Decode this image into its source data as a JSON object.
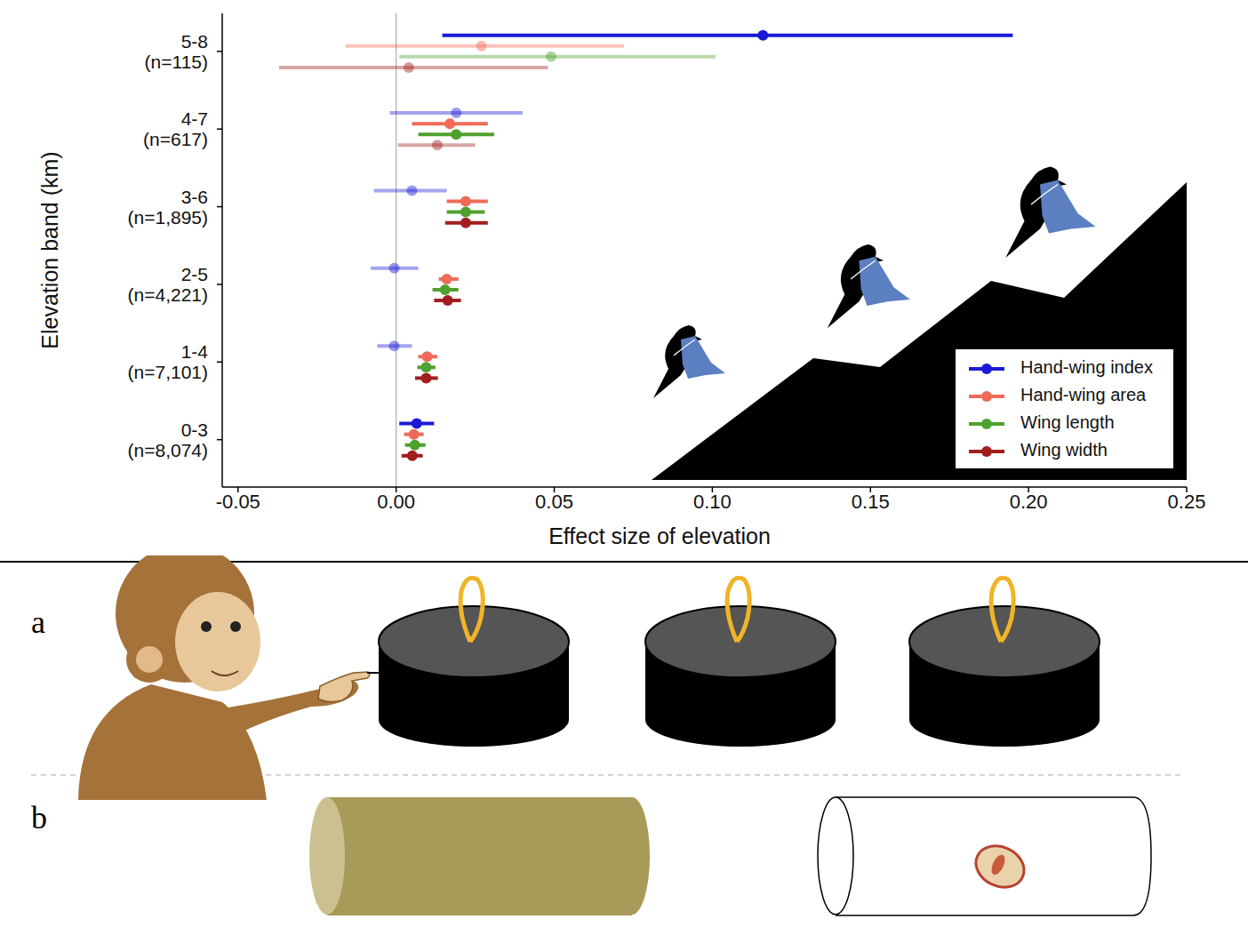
{
  "chart_data": {
    "type": "forest",
    "x_label": "Effect size of elevation",
    "y_label": "Elevation band (km)",
    "categories": [
      "5-8\n(n=115)",
      "4-7\n(n=617)",
      "3-6\n(n=1,895)",
      "2-5\n(n=4,221)",
      "1-4\n(n=7,101)",
      "0-3\n(n=8,074)"
    ],
    "xlim": [
      -0.055,
      0.25
    ],
    "xticks": [
      {
        "value": -0.05,
        "label": "-0.05"
      },
      {
        "value": 0,
        "label": "0.00"
      },
      {
        "value": 0.05,
        "label": "0.05"
      },
      {
        "value": 0.1,
        "label": "0.10"
      },
      {
        "value": 0.15,
        "label": "0.15"
      },
      {
        "value": 0.2,
        "label": "0.20"
      },
      {
        "value": 0.25,
        "label": "0.25"
      }
    ],
    "reference_line": {
      "x": 0
    },
    "legend": "lower right",
    "grid": false,
    "series": [
      {
        "name": "Hand-wing index",
        "color": "#1a1ad6",
        "values": [
          0.116,
          0.019,
          0.005,
          -0.0006,
          -0.0006,
          0.0065
        ],
        "ci_low": [
          0.0146,
          -0.002,
          -0.007,
          -0.008,
          -0.006,
          0.001
        ],
        "ci_high": [
          0.195,
          0.04,
          0.016,
          0.007,
          0.005,
          0.012
        ],
        "significant": [
          true,
          false,
          false,
          false,
          false,
          true
        ]
      },
      {
        "name": "Hand-wing area",
        "color": "#ef6b57",
        "values": [
          0.027,
          0.017,
          0.022,
          0.016,
          0.0098,
          0.0056
        ],
        "ci_low": [
          -0.016,
          0.005,
          0.016,
          0.0135,
          0.007,
          0.0025
        ],
        "ci_high": [
          0.072,
          0.029,
          0.029,
          0.0197,
          0.013,
          0.0087
        ],
        "significant": [
          false,
          true,
          true,
          true,
          true,
          true
        ]
      },
      {
        "name": "Wing length",
        "color": "#4fa12e",
        "values": [
          0.049,
          0.019,
          0.022,
          0.0155,
          0.0095,
          0.0059
        ],
        "ci_low": [
          0.001,
          0.007,
          0.016,
          0.0115,
          0.0067,
          0.0028
        ],
        "ci_high": [
          0.101,
          0.031,
          0.028,
          0.0197,
          0.0124,
          0.0093
        ],
        "significant": [
          false,
          true,
          true,
          true,
          true,
          true
        ]
      },
      {
        "name": "Wing width",
        "color": "#a01e1e",
        "values": [
          0.004,
          0.013,
          0.022,
          0.0163,
          0.0095,
          0.0051
        ],
        "ci_low": [
          -0.037,
          0.0006,
          0.0155,
          0.012,
          0.006,
          0.0017
        ],
        "ci_high": [
          0.048,
          0.025,
          0.029,
          0.0205,
          0.0132,
          0.0084
        ],
        "significant": [
          false,
          false,
          true,
          true,
          true,
          true
        ]
      }
    ]
  },
  "diagram": {
    "panels": [
      {
        "label": "a"
      },
      {
        "label": "b"
      }
    ]
  }
}
